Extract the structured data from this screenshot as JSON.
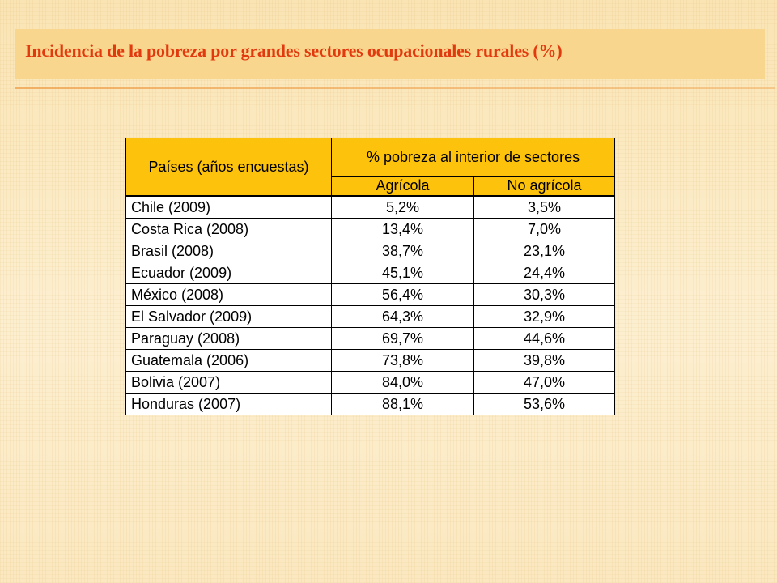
{
  "slide": {
    "title": "Incidencia de la pobreza por grandes sectores ocupacionales rurales (%)"
  },
  "table": {
    "header": {
      "country_label": "Países (años encuestas)",
      "group_label": "% pobreza al interior de sectores",
      "col_agricola": "Agrícola",
      "col_no_agricola": "No agrícola"
    },
    "rows": [
      {
        "country": "Chile (2009)",
        "agricola": "5,2%",
        "no_agricola": "3,5%"
      },
      {
        "country": "Costa Rica (2008)",
        "agricola": "13,4%",
        "no_agricola": "7,0%"
      },
      {
        "country": "Brasil (2008)",
        "agricola": "38,7%",
        "no_agricola": "23,1%"
      },
      {
        "country": "Ecuador (2009)",
        "agricola": "45,1%",
        "no_agricola": "24,4%"
      },
      {
        "country": "México (2008)",
        "agricola": "56,4%",
        "no_agricola": "30,3%"
      },
      {
        "country": "El Salvador (2009)",
        "agricola": "64,3%",
        "no_agricola": "32,9%"
      },
      {
        "country": "Paraguay (2008)",
        "agricola": "69,7%",
        "no_agricola": "44,6%"
      },
      {
        "country": "Guatemala (2006)",
        "agricola": "73,8%",
        "no_agricola": "39,8%"
      },
      {
        "country": "Bolivia (2007)",
        "agricola": "84,0%",
        "no_agricola": "47,0%"
      },
      {
        "country": "Honduras (2007)",
        "agricola": "88,1%",
        "no_agricola": "53,6%"
      }
    ]
  }
}
